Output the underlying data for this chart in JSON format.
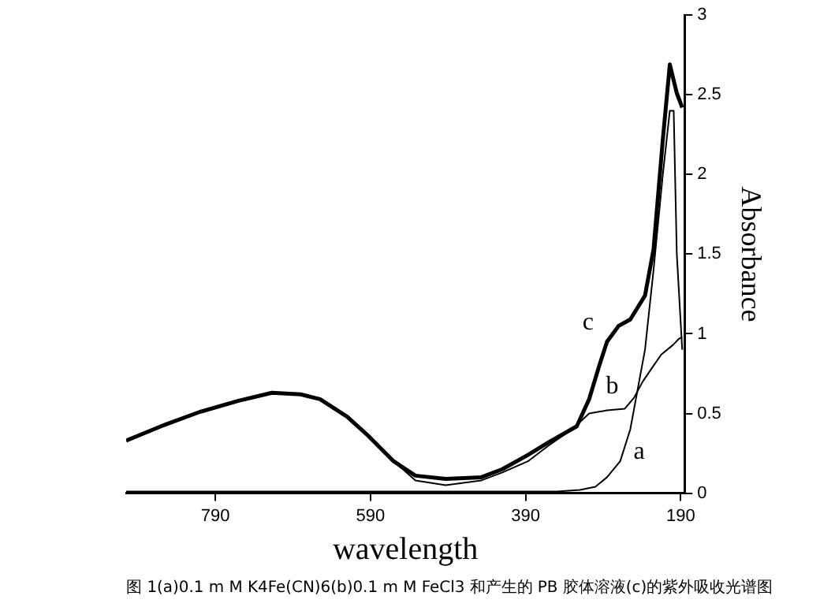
{
  "chart_data": {
    "type": "line",
    "title": "图 1(a)0.1 m M K4Fe(CN)6(b)0.1 m M FeCl3 和产生的 PB 胶体溶液(c)的紫外吸收光谱图",
    "xlabel": "wavelength",
    "ylabel": "Absorbance",
    "xlim": [
      905,
      185
    ],
    "xticks": [
      790,
      590,
      390,
      190
    ],
    "ylim": [
      0,
      3
    ],
    "yticks": [
      0,
      0.5,
      1,
      1.5,
      2,
      2.5,
      3
    ],
    "grid": false,
    "legend": false,
    "marker": "none",
    "line_style": "solid",
    "series": [
      {
        "color": "#000000",
        "x": [
          905,
          860,
          800,
          750,
          700,
          650,
          600,
          560,
          520,
          490,
          450,
          420,
          390,
          350,
          320,
          300,
          285,
          268,
          255,
          236,
          225,
          213,
          204,
          199,
          195,
          188
        ],
        "values": [
          0.01,
          0.01,
          0.01,
          0.01,
          0.01,
          0.01,
          0.01,
          0.01,
          0.01,
          0.01,
          0.01,
          0.01,
          0.01,
          0.01,
          0.02,
          0.04,
          0.1,
          0.2,
          0.4,
          0.9,
          1.4,
          2.0,
          2.4,
          2.4,
          1.5,
          0.9
        ]
      },
      {
        "color": "#000000",
        "x": [
          905,
          860,
          810,
          760,
          717,
          680,
          655,
          620,
          595,
          560,
          532,
          493,
          447,
          420,
          387,
          360,
          330,
          308,
          285,
          262,
          250,
          239,
          225,
          215,
          200,
          192,
          188
        ],
        "values": [
          0.33,
          0.42,
          0.51,
          0.58,
          0.63,
          0.62,
          0.59,
          0.48,
          0.37,
          0.2,
          0.08,
          0.05,
          0.08,
          0.13,
          0.2,
          0.3,
          0.4,
          0.5,
          0.52,
          0.53,
          0.6,
          0.7,
          0.8,
          0.87,
          0.93,
          0.97,
          0.98
        ]
      },
      {
        "color": "#000000",
        "x": [
          905,
          860,
          810,
          760,
          717,
          680,
          655,
          620,
          595,
          560,
          532,
          493,
          447,
          420,
          387,
          360,
          324,
          308,
          295,
          285,
          270,
          255,
          236,
          225,
          213,
          204,
          195,
          188
        ],
        "values": [
          0.33,
          0.42,
          0.51,
          0.58,
          0.63,
          0.62,
          0.59,
          0.48,
          0.37,
          0.2,
          0.11,
          0.09,
          0.1,
          0.15,
          0.24,
          0.32,
          0.42,
          0.59,
          0.8,
          0.95,
          1.05,
          1.09,
          1.24,
          1.53,
          2.22,
          2.69,
          2.51,
          2.42
        ]
      }
    ],
    "annotations": [
      {
        "text": "a",
        "x": 268,
        "y": 0.2
      },
      {
        "text": "b",
        "x": 262,
        "y": 0.53
      },
      {
        "text": "c",
        "x": 285,
        "y": 0.95
      }
    ]
  }
}
